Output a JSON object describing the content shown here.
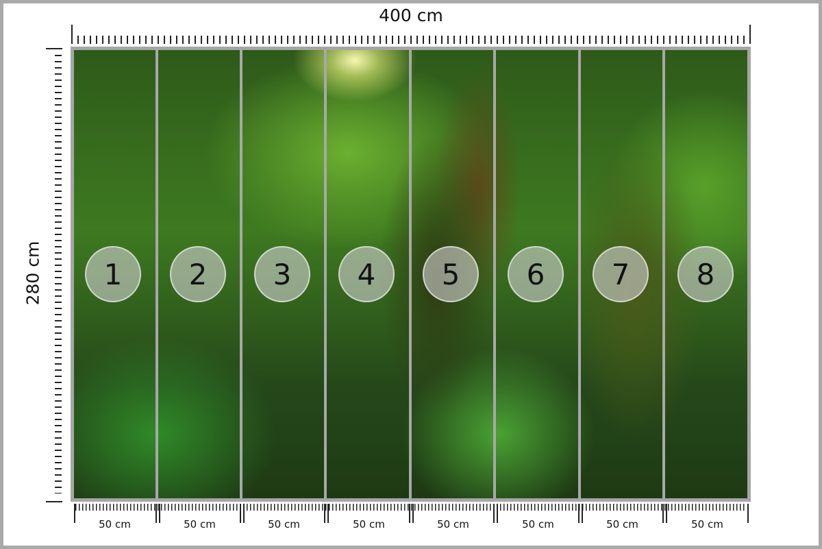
{
  "dimensions": {
    "width_label": "400 cm",
    "height_label": "280 cm"
  },
  "panels": [
    {
      "number": "1",
      "width_label": "50 cm"
    },
    {
      "number": "2",
      "width_label": "50 cm"
    },
    {
      "number": "3",
      "width_label": "50 cm"
    },
    {
      "number": "4",
      "width_label": "50 cm"
    },
    {
      "number": "5",
      "width_label": "50 cm"
    },
    {
      "number": "6",
      "width_label": "50 cm"
    },
    {
      "number": "7",
      "width_label": "50 cm"
    },
    {
      "number": "8",
      "width_label": "50 cm"
    }
  ],
  "colors": {
    "frame": "#a9a9a9",
    "panel_badge": "#cdcdcd"
  }
}
